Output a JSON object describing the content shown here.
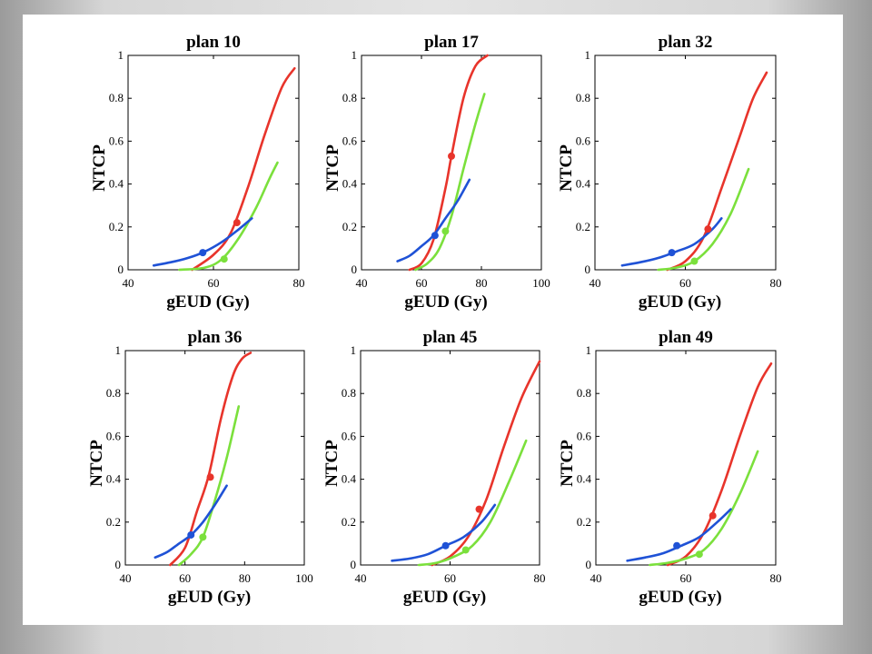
{
  "series_colors": {
    "red": "#e8342b",
    "green": "#7be03c",
    "blue": "#1f52d6"
  },
  "chart_data": [
    {
      "type": "line",
      "title": "plan 10",
      "xlabel": "gEUD (Gy)",
      "ylabel": "NTCP",
      "xlim": [
        40,
        80
      ],
      "ylim": [
        0,
        1
      ],
      "xticks": [
        "40",
        "60",
        "80"
      ],
      "yticks": [
        "0",
        "0.2",
        "0.4",
        "0.6",
        "0.8",
        "1"
      ],
      "series": [
        {
          "color": "#e8342b",
          "curve": [
            [
              55,
              0.0
            ],
            [
              60,
              0.07
            ],
            [
              64,
              0.17
            ],
            [
              68,
              0.38
            ],
            [
              72,
              0.63
            ],
            [
              76,
              0.85
            ],
            [
              79,
              0.94
            ]
          ],
          "marker": [
            65.5,
            0.22
          ]
        },
        {
          "color": "#7be03c",
          "curve": [
            [
              52,
              0.0
            ],
            [
              58,
              0.01
            ],
            [
              62,
              0.05
            ],
            [
              66,
              0.15
            ],
            [
              70,
              0.29
            ],
            [
              73,
              0.42
            ],
            [
              75,
              0.5
            ]
          ],
          "marker": [
            62.5,
            0.05
          ]
        },
        {
          "color": "#1f52d6",
          "curve": [
            [
              46,
              0.02
            ],
            [
              50,
              0.035
            ],
            [
              54,
              0.055
            ],
            [
              58,
              0.085
            ],
            [
              62,
              0.13
            ],
            [
              66,
              0.19
            ],
            [
              69,
              0.24
            ]
          ],
          "marker": [
            57.5,
            0.08
          ]
        }
      ]
    },
    {
      "type": "line",
      "title": "plan 17",
      "xlabel": "gEUD (Gy)",
      "ylabel": "NTCP",
      "xlim": [
        40,
        100
      ],
      "ylim": [
        0,
        1
      ],
      "xticks": [
        "40",
        "60",
        "80",
        "100"
      ],
      "yticks": [
        "0",
        "0.2",
        "0.4",
        "0.6",
        "0.8",
        "1"
      ],
      "series": [
        {
          "color": "#e8342b",
          "curve": [
            [
              56,
              0.0
            ],
            [
              60,
              0.03
            ],
            [
              64,
              0.14
            ],
            [
              68,
              0.38
            ],
            [
              70,
              0.53
            ],
            [
              74,
              0.8
            ],
            [
              78,
              0.95
            ],
            [
              82,
              1.0
            ]
          ],
          "marker": [
            70,
            0.53
          ]
        },
        {
          "color": "#7be03c",
          "curve": [
            [
              58,
              0.0
            ],
            [
              62,
              0.03
            ],
            [
              66,
              0.1
            ],
            [
              70,
              0.25
            ],
            [
              74,
              0.47
            ],
            [
              78,
              0.68
            ],
            [
              81,
              0.82
            ]
          ],
          "marker": [
            68,
            0.18
          ]
        },
        {
          "color": "#1f52d6",
          "curve": [
            [
              52,
              0.04
            ],
            [
              56,
              0.065
            ],
            [
              60,
              0.11
            ],
            [
              64,
              0.16
            ],
            [
              68,
              0.24
            ],
            [
              72,
              0.32
            ],
            [
              76,
              0.42
            ]
          ],
          "marker": [
            64.5,
            0.16
          ]
        }
      ]
    },
    {
      "type": "line",
      "title": "plan 32",
      "xlabel": "gEUD (Gy)",
      "ylabel": "NTCP",
      "xlim": [
        40,
        80
      ],
      "ylim": [
        0,
        1
      ],
      "xticks": [
        "40",
        "60",
        "80"
      ],
      "yticks": [
        "0",
        "0.2",
        "0.4",
        "0.6",
        "0.8",
        "1"
      ],
      "series": [
        {
          "color": "#e8342b",
          "curve": [
            [
              56,
              0.0
            ],
            [
              60,
              0.04
            ],
            [
              64,
              0.15
            ],
            [
              68,
              0.38
            ],
            [
              72,
              0.62
            ],
            [
              75,
              0.8
            ],
            [
              78,
              0.92
            ]
          ],
          "marker": [
            65,
            0.19
          ]
        },
        {
          "color": "#7be03c",
          "curve": [
            [
              54,
              0.0
            ],
            [
              58,
              0.01
            ],
            [
              62,
              0.04
            ],
            [
              66,
              0.12
            ],
            [
              70,
              0.26
            ],
            [
              74,
              0.47
            ]
          ],
          "marker": [
            62,
            0.04
          ]
        },
        {
          "color": "#1f52d6",
          "curve": [
            [
              46,
              0.02
            ],
            [
              50,
              0.035
            ],
            [
              54,
              0.055
            ],
            [
              58,
              0.085
            ],
            [
              62,
              0.12
            ],
            [
              66,
              0.19
            ],
            [
              68,
              0.24
            ]
          ],
          "marker": [
            57,
            0.08
          ]
        }
      ]
    },
    {
      "type": "line",
      "title": "plan 36",
      "xlabel": "gEUD (Gy)",
      "ylabel": "NTCP",
      "xlim": [
        40,
        100
      ],
      "ylim": [
        0,
        1
      ],
      "xticks": [
        "40",
        "60",
        "80",
        "100"
      ],
      "yticks": [
        "0",
        "0.2",
        "0.4",
        "0.6",
        "0.8",
        "1"
      ],
      "series": [
        {
          "color": "#e8342b",
          "curve": [
            [
              55,
              0.0
            ],
            [
              60,
              0.08
            ],
            [
              64,
              0.25
            ],
            [
              68,
              0.42
            ],
            [
              72,
              0.68
            ],
            [
              76,
              0.88
            ],
            [
              79,
              0.96
            ],
            [
              82,
              0.99
            ]
          ],
          "marker": [
            68.5,
            0.41
          ]
        },
        {
          "color": "#7be03c",
          "curve": [
            [
              58,
              0.0
            ],
            [
              62,
              0.05
            ],
            [
              66,
              0.13
            ],
            [
              70,
              0.3
            ],
            [
              74,
              0.5
            ],
            [
              78,
              0.74
            ]
          ],
          "marker": [
            66,
            0.13
          ]
        },
        {
          "color": "#1f52d6",
          "curve": [
            [
              50,
              0.035
            ],
            [
              54,
              0.06
            ],
            [
              58,
              0.1
            ],
            [
              62,
              0.14
            ],
            [
              66,
              0.2
            ],
            [
              70,
              0.28
            ],
            [
              74,
              0.37
            ]
          ],
          "marker": [
            62,
            0.14
          ]
        }
      ]
    },
    {
      "type": "line",
      "title": "plan 45",
      "xlabel": "gEUD (Gy)",
      "ylabel": "NTCP",
      "xlim": [
        40,
        80
      ],
      "ylim": [
        0,
        1
      ],
      "xticks": [
        "40",
        "60",
        "80"
      ],
      "yticks": [
        "0",
        "0.2",
        "0.4",
        "0.6",
        "0.8",
        "1"
      ],
      "series": [
        {
          "color": "#e8342b",
          "curve": [
            [
              56,
              0.0
            ],
            [
              60,
              0.04
            ],
            [
              64,
              0.13
            ],
            [
              68,
              0.3
            ],
            [
              72,
              0.55
            ],
            [
              76,
              0.78
            ],
            [
              80,
              0.95
            ]
          ],
          "marker": [
            66.5,
            0.26
          ]
        },
        {
          "color": "#7be03c",
          "curve": [
            [
              53,
              0.0
            ],
            [
              57,
              0.01
            ],
            [
              61,
              0.04
            ],
            [
              65,
              0.09
            ],
            [
              69,
              0.2
            ],
            [
              73,
              0.38
            ],
            [
              77,
              0.58
            ]
          ],
          "marker": [
            63.5,
            0.07
          ]
        },
        {
          "color": "#1f52d6",
          "curve": [
            [
              47,
              0.02
            ],
            [
              51,
              0.03
            ],
            [
              55,
              0.05
            ],
            [
              59,
              0.09
            ],
            [
              63,
              0.13
            ],
            [
              67,
              0.2
            ],
            [
              70,
              0.28
            ]
          ],
          "marker": [
            59,
            0.09
          ]
        }
      ]
    },
    {
      "type": "line",
      "title": "plan 49",
      "xlabel": "gEUD (Gy)",
      "ylabel": "NTCP",
      "xlim": [
        40,
        80
      ],
      "ylim": [
        0,
        1
      ],
      "xticks": [
        "40",
        "60",
        "80"
      ],
      "yticks": [
        "0",
        "0.2",
        "0.4",
        "0.6",
        "0.8",
        "1"
      ],
      "series": [
        {
          "color": "#e8342b",
          "curve": [
            [
              56,
              0.0
            ],
            [
              60,
              0.04
            ],
            [
              64,
              0.15
            ],
            [
              68,
              0.35
            ],
            [
              72,
              0.6
            ],
            [
              76,
              0.83
            ],
            [
              79,
              0.94
            ]
          ],
          "marker": [
            66,
            0.23
          ]
        },
        {
          "color": "#7be03c",
          "curve": [
            [
              52,
              0.0
            ],
            [
              56,
              0.01
            ],
            [
              60,
              0.03
            ],
            [
              64,
              0.07
            ],
            [
              68,
              0.17
            ],
            [
              72,
              0.33
            ],
            [
              76,
              0.53
            ]
          ],
          "marker": [
            63,
            0.05
          ]
        },
        {
          "color": "#1f52d6",
          "curve": [
            [
              47,
              0.02
            ],
            [
              51,
              0.035
            ],
            [
              55,
              0.055
            ],
            [
              59,
              0.09
            ],
            [
              63,
              0.13
            ],
            [
              67,
              0.2
            ],
            [
              70,
              0.26
            ]
          ],
          "marker": [
            58,
            0.09
          ]
        }
      ]
    }
  ]
}
